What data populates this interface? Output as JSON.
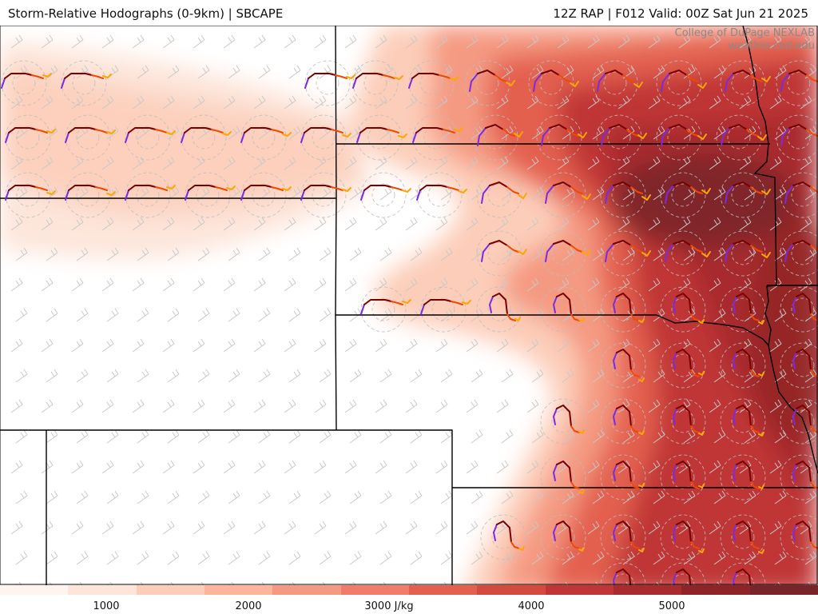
{
  "header": {
    "title_left": "Storm-Relative Hodographs (0-9km) | SBCAPE",
    "title_right": "12Z RAP | F012 Valid: 00Z Sat Jun 21 2025"
  },
  "credits": {
    "line1": "College of DuPage NEXLAB",
    "line2": "weather.cod.edu"
  },
  "colorbar": {
    "labels": [
      "1000",
      "2000",
      "3000 J/kg",
      "4000",
      "5000"
    ],
    "colors": [
      "#fff4ee",
      "#fde5da",
      "#fccdb9",
      "#fab59c",
      "#f59a82",
      "#ef7d6a",
      "#e3604f",
      "#d44a3e",
      "#c03535",
      "#a82c2e",
      "#8e2427",
      "#76252a"
    ]
  },
  "legend_colors": {
    "hodo_0_1km": "#7b2be0",
    "hodo_1_3km": "#7a0000",
    "hodo_3_6km": "#f04a00",
    "hodo_6_9km": "#ffa500"
  }
}
